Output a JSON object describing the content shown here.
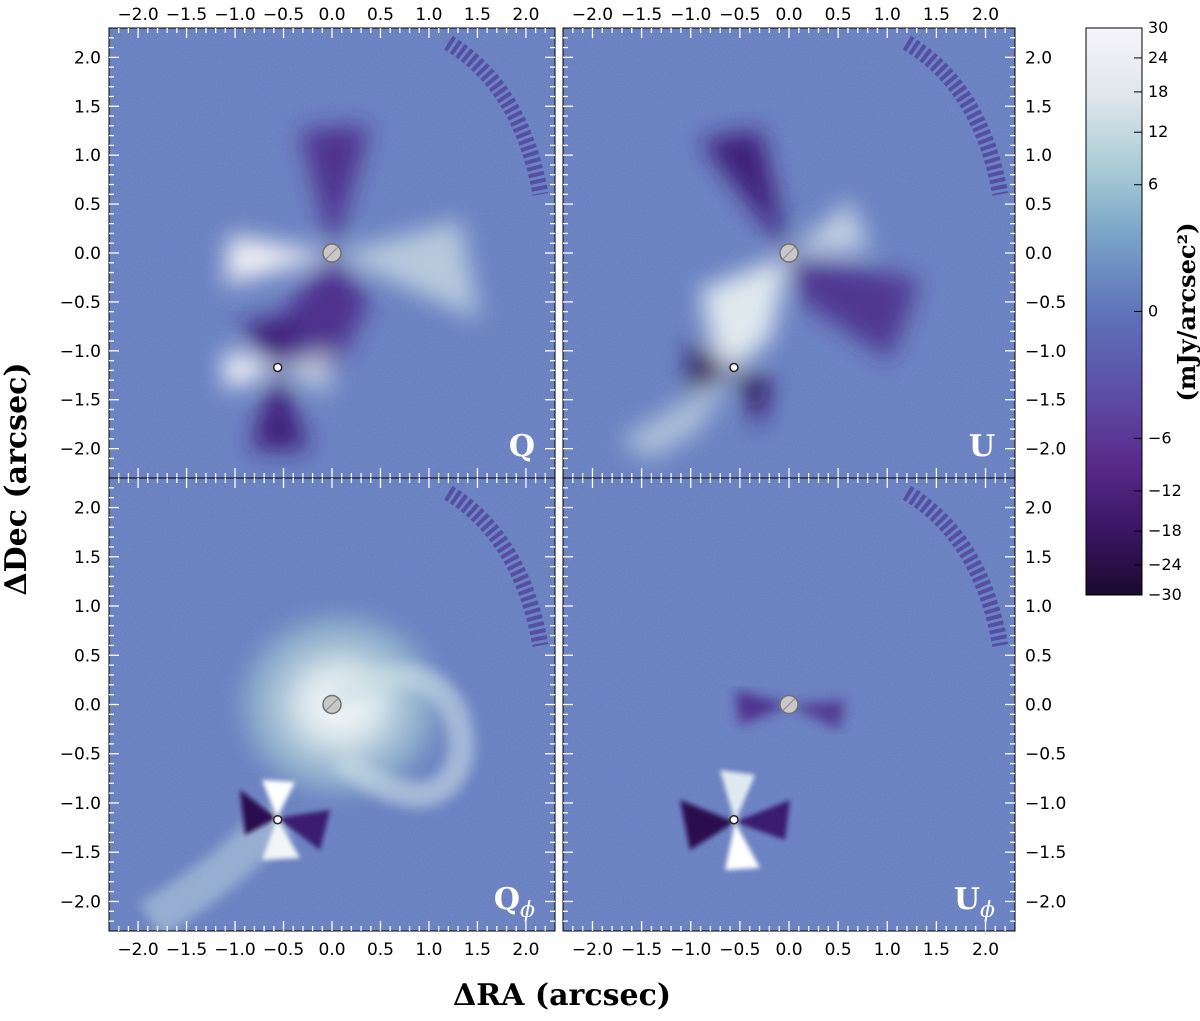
{
  "chart_data": {
    "type": "heatmap",
    "xlabel": "ΔRA (arcsec)",
    "ylabel": "ΔDec (arcsec)",
    "xlim": [
      -2.3,
      2.3
    ],
    "ylim": [
      -2.3,
      2.3
    ],
    "ticks": [
      -2.0,
      -1.5,
      -1.0,
      -0.5,
      0.0,
      0.5,
      1.0,
      1.5,
      2.0
    ],
    "tick_labels": [
      "−2.0",
      "−1.5",
      "−1.0",
      "−0.5",
      "0.0",
      "0.5",
      "1.0",
      "1.5",
      "2.0"
    ],
    "colormap": "twilight_shifted",
    "panels": [
      {
        "label": "Q",
        "position": "top-left"
      },
      {
        "label": "U",
        "position": "top-right"
      },
      {
        "label": "Q",
        "subscript": "ϕ",
        "position": "bottom-left"
      },
      {
        "label": "U",
        "subscript": "ϕ",
        "position": "bottom-right"
      }
    ],
    "stars": [
      {
        "name": "primary",
        "x": 0.0,
        "y": 0.0
      },
      {
        "name": "secondary",
        "x": -0.56,
        "y": -1.17
      }
    ],
    "colorbar": {
      "label": "(mJy/arcsec²)",
      "ticks": [
        30,
        24,
        18,
        12,
        6,
        0,
        -6,
        -12,
        -18,
        -24,
        -30
      ],
      "tick_labels": [
        "30",
        "24",
        "18",
        "12",
        "6",
        "0",
        "−6",
        "−12",
        "−18",
        "−24",
        "−30"
      ],
      "range": [
        -30,
        30
      ],
      "colors": {
        "max": "#f7f4f9",
        "mid_high": "#8fb6c9",
        "zero": "#5f73ba",
        "mid_low": "#5b2a8a",
        "min": "#1a0a2e"
      }
    }
  }
}
